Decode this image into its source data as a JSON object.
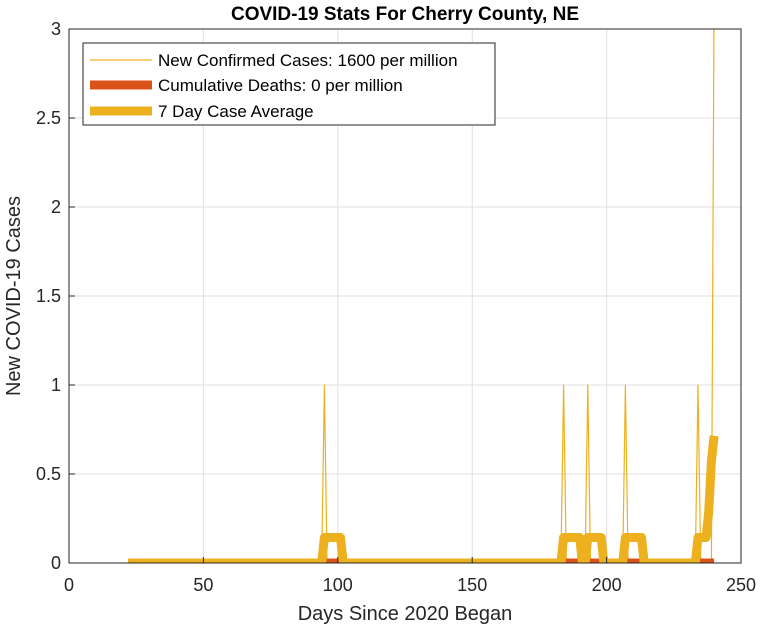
{
  "chart_data": {
    "type": "line",
    "title": "COVID-19 Stats For Cherry County, NE",
    "xlabel": "Days Since 2020 Began",
    "ylabel": "New COVID-19 Cases",
    "xlim": [
      0,
      250
    ],
    "ylim": [
      0,
      3
    ],
    "xticks": [
      "0",
      "50",
      "100",
      "150",
      "200",
      "250"
    ],
    "yticks": [
      "0",
      "0.5",
      "1",
      "1.5",
      "2",
      "2.5",
      "3"
    ],
    "grid": true,
    "legend_position": "top-left",
    "series": [
      {
        "name": "New Confirmed Cases: 1600 per million",
        "color": "#EDB120",
        "linewidth": "thin",
        "x": [
          22,
          94,
          95,
          96,
          183,
          184,
          185,
          192,
          193,
          194,
          206,
          207,
          208,
          233,
          234,
          235,
          239,
          240
        ],
        "y": [
          0,
          0,
          1,
          0,
          0,
          1,
          0,
          0,
          1,
          0,
          0,
          1,
          0,
          0,
          1,
          0,
          0,
          3.2
        ]
      },
      {
        "name": "Cumulative Deaths: 0 per million",
        "color": "#D95319",
        "linewidth": "thick",
        "x": [
          22,
          240
        ],
        "y": [
          0,
          0
        ]
      },
      {
        "name": "7 Day Case Average",
        "color": "#EDB120",
        "linewidth": "thick",
        "x": [
          22,
          94,
          95,
          101,
          102,
          183,
          184,
          190,
          191,
          192,
          193,
          198,
          199,
          206,
          207,
          213,
          214,
          233,
          234,
          237,
          238,
          239,
          240
        ],
        "y": [
          0,
          0,
          0.143,
          0.143,
          0,
          0,
          0.143,
          0.143,
          0,
          0,
          0.143,
          0.143,
          0,
          0,
          0.143,
          0.143,
          0,
          0,
          0.143,
          0.143,
          0.286,
          0.571,
          0.714
        ]
      }
    ]
  }
}
